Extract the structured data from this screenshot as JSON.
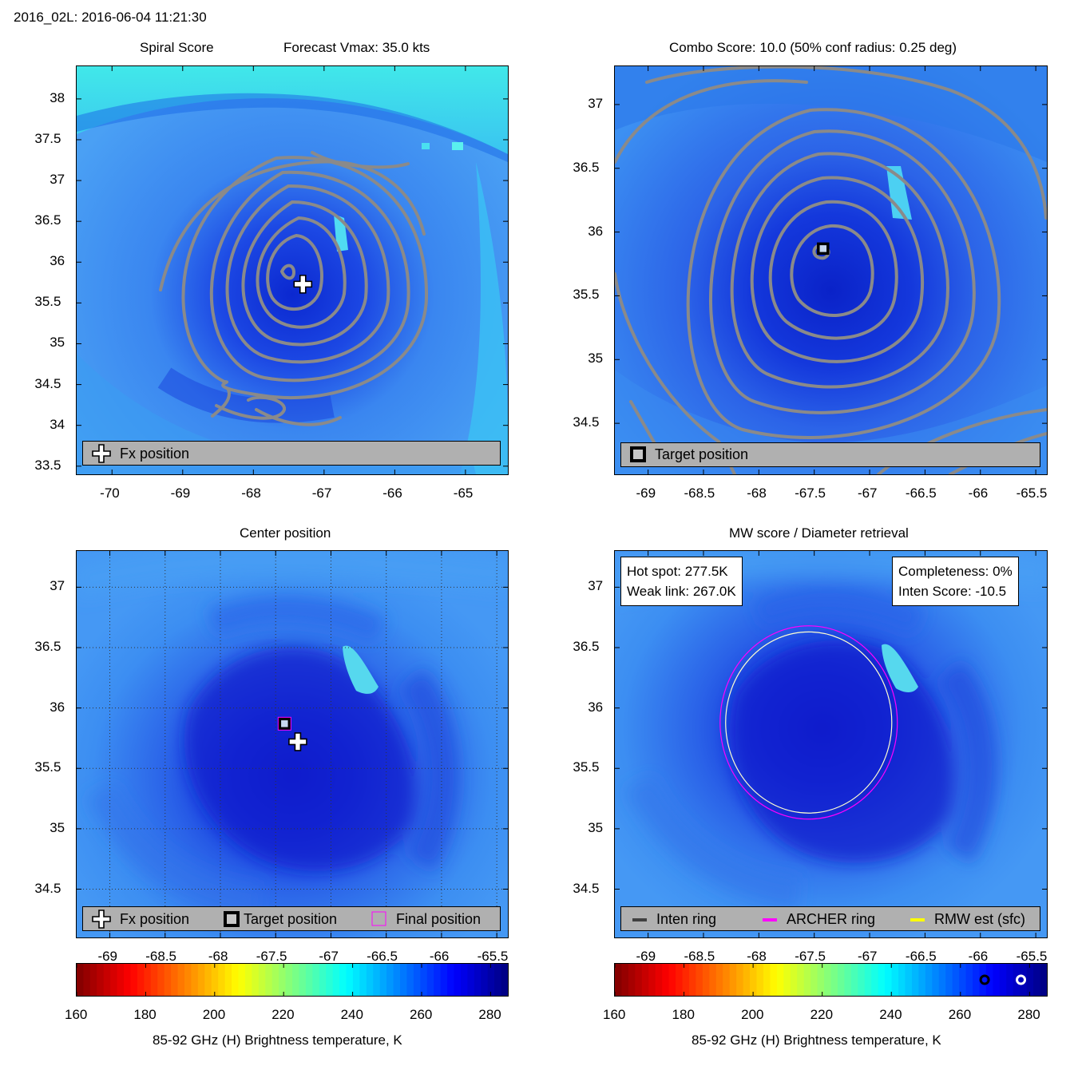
{
  "header": {
    "title": "2016_02L: 2016-06-04 11:21:30"
  },
  "colors": {
    "field_base": "#3a86f0",
    "field_dark": "#1030d8",
    "contour": "#8a8a8a",
    "legend_bg": "#b0b0b0",
    "archer_ring": "#ff00ff",
    "rmw_ring": "#ffff00",
    "inten_ring": "#404040"
  },
  "colorbar": {
    "label": "85-92 GHz (H) Brightness temperature, K",
    "ticks": [
      "160",
      "180",
      "200",
      "220",
      "240",
      "260",
      "280"
    ],
    "range": [
      160,
      285
    ]
  },
  "chart_data": [
    {
      "type": "heatmap",
      "id": "spiral",
      "title_left": "Spiral Score",
      "title_right": "Forecast Vmax: 35.0 kts",
      "xlim": [
        -70.5,
        -64.4
      ],
      "ylim": [
        33.4,
        38.4
      ],
      "xticks": [
        "-70",
        "-69",
        "-68",
        "-67",
        "-66",
        "-65"
      ],
      "yticks": [
        "38",
        "37.5",
        "37",
        "36.5",
        "36",
        "35.5",
        "35",
        "34.5",
        "34",
        "33.5"
      ],
      "markers": [
        {
          "kind": "fx-plus",
          "x": -67.3,
          "y": 35.73
        }
      ],
      "legend": [
        {
          "icon": "plus-icon",
          "label": "Fx position"
        }
      ]
    },
    {
      "type": "heatmap",
      "id": "combo",
      "title": "Combo Score: 10.0  (50% conf radius: 0.25 deg)",
      "xlim": [
        -69.3,
        -65.4
      ],
      "ylim": [
        34.1,
        37.3
      ],
      "xticks": [
        "-69",
        "-68.5",
        "-68",
        "-67.5",
        "-67",
        "-66.5",
        "-66",
        "-65.5"
      ],
      "yticks": [
        "37",
        "36.5",
        "36",
        "35.5",
        "35",
        "34.5"
      ],
      "markers": [
        {
          "kind": "target-square",
          "x": -67.42,
          "y": 35.87
        }
      ],
      "legend": [
        {
          "icon": "target-square-icon",
          "label": "Target position"
        }
      ]
    },
    {
      "type": "heatmap",
      "id": "center",
      "title": "Center position",
      "xlim": [
        -69.3,
        -65.4
      ],
      "ylim": [
        34.1,
        37.3
      ],
      "xticks": [
        "-69",
        "-68.5",
        "-68",
        "-67.5",
        "-67",
        "-66.5",
        "-66",
        "-65.5"
      ],
      "yticks": [
        "37",
        "36.5",
        "36",
        "35.5",
        "35",
        "34.5"
      ],
      "grid": true,
      "markers": [
        {
          "kind": "target-square",
          "x": -67.42,
          "y": 35.87
        },
        {
          "kind": "final-square",
          "x": -67.42,
          "y": 35.87
        },
        {
          "kind": "fx-plus",
          "x": -67.3,
          "y": 35.72
        }
      ],
      "legend": [
        {
          "icon": "plus-icon",
          "label": "Fx position"
        },
        {
          "icon": "target-square-icon",
          "label": "Target position"
        },
        {
          "icon": "final-square-icon",
          "label": "Final position"
        }
      ]
    },
    {
      "type": "heatmap",
      "id": "mw",
      "title": "MW score / Diameter retrieval",
      "xlim": [
        -69.3,
        -65.4
      ],
      "ylim": [
        34.1,
        37.3
      ],
      "xticks": [
        "-69",
        "-68.5",
        "-68",
        "-67.5",
        "-67",
        "-66.5",
        "-66",
        "-65.5"
      ],
      "yticks": [
        "37",
        "36.5",
        "36",
        "35.5",
        "35",
        "34.5"
      ],
      "info_left": [
        "Hot spot: 277.5K",
        "Weak link: 267.0K"
      ],
      "info_right": [
        "Completeness: 0%",
        "Inten Score: -10.5"
      ],
      "rings": {
        "center": [
          -67.55,
          35.88
        ],
        "archer_radius_deg": 0.8,
        "rmw_radius_deg": 0.75
      },
      "colorbar_markers": [
        {
          "kind": "weak-link-circle",
          "value": 267.0
        },
        {
          "kind": "hot-spot-circle",
          "value": 277.5
        }
      ],
      "legend": [
        {
          "icon": "inten-ring-line-icon",
          "label": "Inten ring"
        },
        {
          "icon": "archer-ring-line-icon",
          "label": "ARCHER ring"
        },
        {
          "icon": "rmw-line-icon",
          "label": "RMW est (sfc)"
        }
      ]
    }
  ]
}
